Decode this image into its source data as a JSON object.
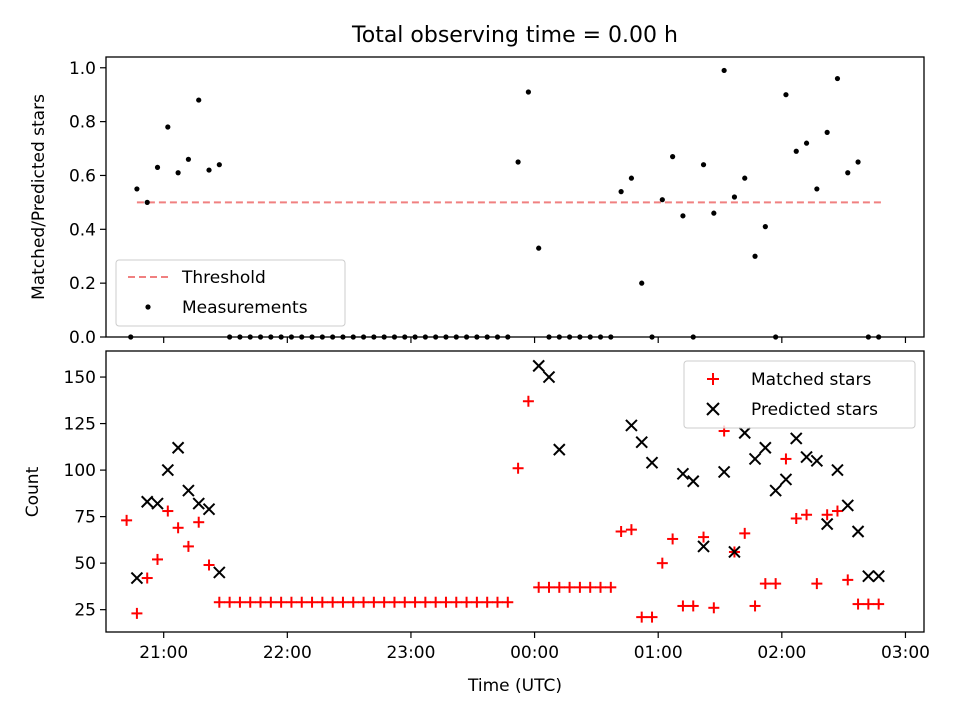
{
  "title": "Total observing time = 0.00 h",
  "xlabel": "Time (UTC)",
  "chart_data": [
    {
      "type": "scatter",
      "ylabel": "Matched/Predicted stars",
      "ylim": [
        0,
        1.04
      ],
      "yticks": [
        0.0,
        0.2,
        0.4,
        0.6,
        0.8,
        1.0
      ],
      "ytick_labels": [
        "0.0",
        "0.2",
        "0.4",
        "0.6",
        "0.8",
        "1.0"
      ],
      "legend_position": "lower-left",
      "threshold": {
        "name": "Threshold",
        "value": 0.5,
        "x_start": "20:47",
        "x_end": "02:49",
        "color": "#f08080"
      },
      "series": [
        {
          "name": "Measurements",
          "color": "#000000",
          "marker": "dot",
          "x": [
            "20:44",
            "20:47",
            "20:52",
            "20:57",
            "21:02",
            "21:07",
            "21:12",
            "21:17",
            "21:22",
            "21:27",
            "21:32",
            "21:37",
            "21:42",
            "21:47",
            "21:52",
            "21:57",
            "22:02",
            "22:07",
            "22:12",
            "22:17",
            "22:22",
            "22:27",
            "22:32",
            "22:37",
            "22:42",
            "22:47",
            "22:52",
            "22:57",
            "23:02",
            "23:07",
            "23:12",
            "23:17",
            "23:22",
            "23:27",
            "23:32",
            "23:37",
            "23:42",
            "23:47",
            "23:52",
            "23:57",
            "00:02",
            "00:07",
            "00:12",
            "00:17",
            "00:22",
            "00:27",
            "00:32",
            "00:37",
            "00:42",
            "00:47",
            "00:52",
            "00:57",
            "01:02",
            "01:07",
            "01:12",
            "01:17",
            "01:22",
            "01:27",
            "01:32",
            "01:37",
            "01:42",
            "01:47",
            "01:52",
            "01:57",
            "02:02",
            "02:07",
            "02:12",
            "02:17",
            "02:22",
            "02:27",
            "02:32",
            "02:37",
            "02:42",
            "02:47"
          ],
          "y": [
            0.0,
            0.55,
            0.5,
            0.63,
            0.78,
            0.61,
            0.66,
            0.88,
            0.62,
            0.64,
            0.0,
            0.0,
            0.0,
            0.0,
            0.0,
            0.0,
            0.0,
            0.0,
            0.0,
            0.0,
            0.0,
            0.0,
            0.0,
            0.0,
            0.0,
            0.0,
            0.0,
            0.0,
            0.0,
            0.0,
            0.0,
            0.0,
            0.0,
            0.0,
            0.0,
            0.0,
            0.0,
            0.0,
            0.65,
            0.91,
            0.33,
            0.0,
            0.0,
            0.0,
            0.0,
            0.0,
            0.0,
            0.0,
            0.54,
            0.59,
            0.2,
            0.0,
            0.51,
            0.67,
            0.45,
            0.0,
            0.64,
            0.46,
            0.99,
            0.52,
            0.59,
            0.3,
            0.41,
            0.0,
            0.9,
            0.69,
            0.72,
            0.55,
            0.76,
            0.96,
            0.61,
            0.65,
            0.0,
            0.0
          ]
        }
      ]
    },
    {
      "type": "scatter",
      "ylabel": "Count",
      "ylim": [
        13,
        164
      ],
      "yticks": [
        25,
        50,
        75,
        100,
        125,
        150
      ],
      "ytick_labels": [
        "25",
        "50",
        "75",
        "100",
        "125",
        "150"
      ],
      "xlim": [
        "20:32",
        "03:09"
      ],
      "xticks": [
        "21:00",
        "22:00",
        "23:00",
        "00:00",
        "01:00",
        "02:00",
        "03:00"
      ],
      "legend_position": "upper-right",
      "series": [
        {
          "name": "Matched stars",
          "color": "#ff0000",
          "marker": "plus",
          "x": [
            "20:42",
            "20:47",
            "20:52",
            "20:57",
            "21:02",
            "21:07",
            "21:12",
            "21:17",
            "21:22",
            "21:27",
            "21:32",
            "21:37",
            "21:42",
            "21:47",
            "21:52",
            "21:57",
            "22:02",
            "22:07",
            "22:12",
            "22:17",
            "22:22",
            "22:27",
            "22:32",
            "22:37",
            "22:42",
            "22:47",
            "22:52",
            "22:57",
            "23:02",
            "23:07",
            "23:12",
            "23:17",
            "23:22",
            "23:27",
            "23:32",
            "23:37",
            "23:42",
            "23:47",
            "23:52",
            "23:57",
            "00:02",
            "00:07",
            "00:12",
            "00:17",
            "00:22",
            "00:27",
            "00:32",
            "00:37",
            "00:42",
            "00:47",
            "00:52",
            "00:57",
            "01:02",
            "01:07",
            "01:12",
            "01:17",
            "01:22",
            "01:27",
            "01:32",
            "01:37",
            "01:42",
            "01:47",
            "01:52",
            "01:57",
            "02:02",
            "02:07",
            "02:12",
            "02:17",
            "02:22",
            "02:27",
            "02:32",
            "02:37",
            "02:42",
            "02:47"
          ],
          "y": [
            73,
            23,
            42,
            52,
            78,
            69,
            59,
            72,
            49,
            29,
            29,
            29,
            29,
            29,
            29,
            29,
            29,
            29,
            29,
            29,
            29,
            29,
            29,
            29,
            29,
            29,
            29,
            29,
            29,
            29,
            29,
            29,
            29,
            29,
            29,
            29,
            29,
            29,
            101,
            137,
            37,
            37,
            37,
            37,
            37,
            37,
            37,
            37,
            67,
            68,
            21,
            21,
            50,
            63,
            27,
            27,
            64,
            26,
            121,
            56,
            66,
            27,
            39,
            39,
            106,
            74,
            76,
            39,
            76,
            78,
            41,
            28,
            28,
            28
          ]
        },
        {
          "name": "Predicted stars",
          "color": "#000000",
          "marker": "x",
          "x": [
            "20:47",
            "20:52",
            "20:57",
            "21:02",
            "21:07",
            "21:12",
            "21:17",
            "21:22",
            "21:27",
            "00:02",
            "00:07",
            "00:12",
            "00:47",
            "00:52",
            "00:57",
            "01:12",
            "01:17",
            "01:22",
            "01:32",
            "01:37",
            "01:42",
            "01:47",
            "01:52",
            "01:57",
            "02:02",
            "02:07",
            "02:12",
            "02:17",
            "02:22",
            "02:27",
            "02:32",
            "02:37",
            "02:42",
            "02:47"
          ],
          "y": [
            42,
            83,
            82,
            100,
            112,
            89,
            82,
            79,
            45,
            156,
            150,
            111,
            124,
            115,
            104,
            98,
            94,
            59,
            99,
            56,
            120,
            106,
            112,
            89,
            95,
            117,
            107,
            105,
            71,
            100,
            81,
            67,
            43,
            43
          ]
        }
      ]
    }
  ]
}
